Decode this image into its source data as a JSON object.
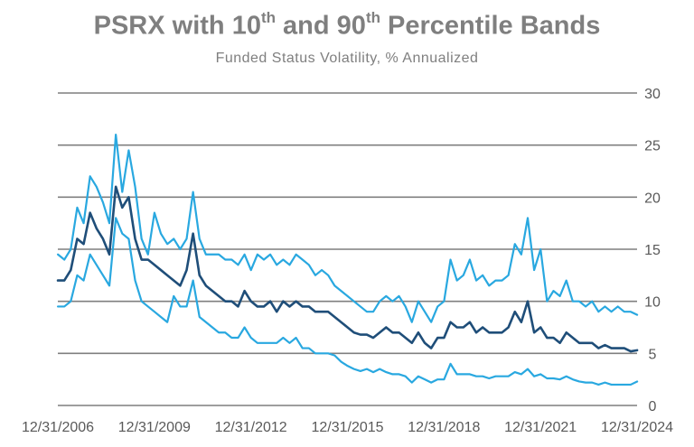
{
  "chart_data": {
    "type": "line",
    "title_parts": {
      "prefix": "PSRX with 10",
      "sup1": "th",
      "middle": " and 90",
      "sup2": "th",
      "suffix": " Percentile Bands"
    },
    "subtitle": "Funded Status Volatility, % Annualized",
    "xlabel": "",
    "ylabel": "",
    "ylim": [
      0,
      30
    ],
    "y_ticks": [
      0,
      5,
      10,
      15,
      20,
      25,
      30
    ],
    "x_range": [
      2006.998,
      2024.998
    ],
    "x_tick_labels": [
      "12/31/2006",
      "12/31/2009",
      "12/31/2012",
      "12/31/2015",
      "12/31/2018",
      "12/31/2021",
      "12/31/2024"
    ],
    "x_tick_positions": [
      2006.998,
      2009.998,
      2012.998,
      2015.998,
      2018.998,
      2021.998,
      2024.998
    ],
    "grid": "horizontal",
    "legend": "none",
    "colors": {
      "median": "#1f4e79",
      "bands": "#29a8e0",
      "grid": "#7f7f7f",
      "text": "#7f7f7f"
    },
    "series": [
      {
        "role": "p90",
        "x": [
          2007.0,
          2007.2,
          2007.4,
          2007.6,
          2007.8,
          2008.0,
          2008.2,
          2008.4,
          2008.6,
          2008.8,
          2009.0,
          2009.2,
          2009.4,
          2009.6,
          2009.8,
          2010.0,
          2010.2,
          2010.4,
          2010.6,
          2010.8,
          2011.0,
          2011.2,
          2011.4,
          2011.6,
          2011.8,
          2012.0,
          2012.2,
          2012.4,
          2012.6,
          2012.8,
          2013.0,
          2013.2,
          2013.4,
          2013.6,
          2013.8,
          2014.0,
          2014.2,
          2014.4,
          2014.6,
          2014.8,
          2015.0,
          2015.2,
          2015.4,
          2015.6,
          2015.8,
          2016.0,
          2016.2,
          2016.4,
          2016.6,
          2016.8,
          2017.0,
          2017.2,
          2017.4,
          2017.6,
          2017.8,
          2018.0,
          2018.2,
          2018.4,
          2018.6,
          2018.8,
          2019.0,
          2019.2,
          2019.4,
          2019.6,
          2019.8,
          2020.0,
          2020.2,
          2020.4,
          2020.6,
          2020.8,
          2021.0,
          2021.2,
          2021.4,
          2021.6,
          2021.8,
          2022.0,
          2022.2,
          2022.4,
          2022.6,
          2022.8,
          2023.0,
          2023.2,
          2023.4,
          2023.6,
          2023.8,
          2024.0,
          2024.2,
          2024.4,
          2024.6,
          2024.8,
          2025.0
        ],
        "values": [
          14.5,
          14.0,
          15.0,
          19.0,
          17.5,
          22.0,
          21.0,
          19.5,
          17.5,
          26.0,
          20.5,
          24.5,
          21.0,
          16.0,
          14.5,
          18.5,
          16.5,
          15.5,
          16.0,
          15.0,
          16.0,
          20.5,
          16.0,
          14.5,
          14.5,
          14.5,
          14.0,
          14.0,
          13.5,
          14.5,
          13.0,
          14.5,
          14.0,
          14.5,
          13.5,
          14.0,
          13.5,
          14.5,
          14.0,
          13.5,
          12.5,
          13.0,
          12.5,
          11.5,
          11.0,
          10.5,
          10.0,
          9.5,
          9.0,
          9.0,
          10.0,
          10.5,
          10.0,
          10.5,
          9.5,
          8.0,
          10.0,
          9.0,
          8.0,
          9.5,
          10.0,
          14.0,
          12.0,
          12.5,
          14.0,
          12.0,
          12.5,
          11.5,
          12.0,
          12.0,
          12.5,
          15.5,
          14.5,
          18.0,
          13.0,
          15.0,
          10.0,
          11.0,
          10.5,
          12.0,
          10.0,
          10.0,
          9.5,
          10.0,
          9.0,
          9.5,
          9.0,
          9.5,
          9.0,
          9.0,
          8.7
        ]
      },
      {
        "role": "median",
        "x": [
          2007.0,
          2007.2,
          2007.4,
          2007.6,
          2007.8,
          2008.0,
          2008.2,
          2008.4,
          2008.6,
          2008.8,
          2009.0,
          2009.2,
          2009.4,
          2009.6,
          2009.8,
          2010.0,
          2010.2,
          2010.4,
          2010.6,
          2010.8,
          2011.0,
          2011.2,
          2011.4,
          2011.6,
          2011.8,
          2012.0,
          2012.2,
          2012.4,
          2012.6,
          2012.8,
          2013.0,
          2013.2,
          2013.4,
          2013.6,
          2013.8,
          2014.0,
          2014.2,
          2014.4,
          2014.6,
          2014.8,
          2015.0,
          2015.2,
          2015.4,
          2015.6,
          2015.8,
          2016.0,
          2016.2,
          2016.4,
          2016.6,
          2016.8,
          2017.0,
          2017.2,
          2017.4,
          2017.6,
          2017.8,
          2018.0,
          2018.2,
          2018.4,
          2018.6,
          2018.8,
          2019.0,
          2019.2,
          2019.4,
          2019.6,
          2019.8,
          2020.0,
          2020.2,
          2020.4,
          2020.6,
          2020.8,
          2021.0,
          2021.2,
          2021.4,
          2021.6,
          2021.8,
          2022.0,
          2022.2,
          2022.4,
          2022.6,
          2022.8,
          2023.0,
          2023.2,
          2023.4,
          2023.6,
          2023.8,
          2024.0,
          2024.2,
          2024.4,
          2024.6,
          2024.8,
          2025.0
        ],
        "values": [
          12.0,
          12.0,
          13.0,
          16.0,
          15.5,
          18.5,
          17.0,
          16.0,
          14.5,
          21.0,
          19.0,
          20.0,
          16.0,
          14.0,
          14.0,
          13.5,
          13.0,
          12.5,
          12.0,
          11.5,
          13.0,
          16.5,
          12.5,
          11.5,
          11.0,
          10.5,
          10.0,
          10.0,
          9.5,
          11.0,
          10.0,
          9.5,
          9.5,
          10.0,
          9.0,
          10.0,
          9.5,
          10.0,
          9.5,
          9.5,
          9.0,
          9.0,
          9.0,
          8.5,
          8.0,
          7.5,
          7.0,
          6.8,
          6.8,
          6.5,
          7.0,
          7.5,
          7.0,
          7.0,
          6.5,
          6.0,
          7.0,
          6.0,
          5.5,
          6.5,
          6.5,
          8.0,
          7.5,
          7.5,
          8.0,
          7.0,
          7.5,
          7.0,
          7.0,
          7.0,
          7.5,
          9.0,
          8.0,
          10.0,
          7.0,
          7.5,
          6.5,
          6.5,
          6.0,
          7.0,
          6.5,
          6.0,
          6.0,
          6.0,
          5.5,
          5.8,
          5.5,
          5.5,
          5.5,
          5.2,
          5.3
        ]
      },
      {
        "role": "p10",
        "x": [
          2007.0,
          2007.2,
          2007.4,
          2007.6,
          2007.8,
          2008.0,
          2008.2,
          2008.4,
          2008.6,
          2008.8,
          2009.0,
          2009.2,
          2009.4,
          2009.6,
          2009.8,
          2010.0,
          2010.2,
          2010.4,
          2010.6,
          2010.8,
          2011.0,
          2011.2,
          2011.4,
          2011.6,
          2011.8,
          2012.0,
          2012.2,
          2012.4,
          2012.6,
          2012.8,
          2013.0,
          2013.2,
          2013.4,
          2013.6,
          2013.8,
          2014.0,
          2014.2,
          2014.4,
          2014.6,
          2014.8,
          2015.0,
          2015.2,
          2015.4,
          2015.6,
          2015.8,
          2016.0,
          2016.2,
          2016.4,
          2016.6,
          2016.8,
          2017.0,
          2017.2,
          2017.4,
          2017.6,
          2017.8,
          2018.0,
          2018.2,
          2018.4,
          2018.6,
          2018.8,
          2019.0,
          2019.2,
          2019.4,
          2019.6,
          2019.8,
          2020.0,
          2020.2,
          2020.4,
          2020.6,
          2020.8,
          2021.0,
          2021.2,
          2021.4,
          2021.6,
          2021.8,
          2022.0,
          2022.2,
          2022.4,
          2022.6,
          2022.8,
          2023.0,
          2023.2,
          2023.4,
          2023.6,
          2023.8,
          2024.0,
          2024.2,
          2024.4,
          2024.6,
          2024.8,
          2025.0
        ],
        "values": [
          9.5,
          9.5,
          10.0,
          12.5,
          12.0,
          14.5,
          13.5,
          12.5,
          11.5,
          18.0,
          16.5,
          16.0,
          12.0,
          10.0,
          9.5,
          9.0,
          8.5,
          8.0,
          10.5,
          9.5,
          9.5,
          12.0,
          8.5,
          8.0,
          7.5,
          7.0,
          7.0,
          6.5,
          6.5,
          7.5,
          6.5,
          6.0,
          6.0,
          6.0,
          6.0,
          6.5,
          6.0,
          6.5,
          5.5,
          5.5,
          5.0,
          5.0,
          5.0,
          4.8,
          4.2,
          3.8,
          3.5,
          3.3,
          3.5,
          3.2,
          3.5,
          3.2,
          3.0,
          3.0,
          2.8,
          2.2,
          2.8,
          2.5,
          2.2,
          2.5,
          2.5,
          4.0,
          3.0,
          3.0,
          3.0,
          2.8,
          2.8,
          2.6,
          2.8,
          2.8,
          2.8,
          3.2,
          3.0,
          3.5,
          2.8,
          3.0,
          2.6,
          2.6,
          2.5,
          2.8,
          2.5,
          2.3,
          2.2,
          2.2,
          2.0,
          2.2,
          2.0,
          2.0,
          2.0,
          2.0,
          2.3
        ]
      }
    ]
  }
}
